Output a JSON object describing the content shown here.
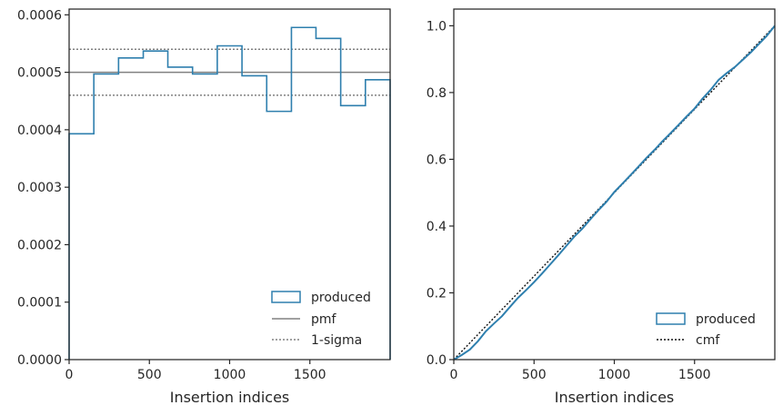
{
  "colors": {
    "produced": "#2e7fae",
    "pmf": "#808080",
    "sigma": "#808080",
    "cmf": "#111111",
    "axes": "#262626"
  },
  "chart_data": [
    {
      "type": "histogram-step",
      "xlabel": "Insertion indices",
      "ylabel": "",
      "xlim": [
        0,
        2000
      ],
      "ylim": [
        0,
        0.00061
      ],
      "xticks": [
        0,
        500,
        1000,
        1500
      ],
      "xtick_labels": [
        "0",
        "500",
        "1000",
        "1500"
      ],
      "yticks": [
        0,
        0.0001,
        0.0002,
        0.0003,
        0.0004,
        0.0005,
        0.0006
      ],
      "ytick_labels": [
        "0.0000",
        "0.0001",
        "0.0002",
        "0.0003",
        "0.0004",
        "0.0005",
        "0.0006"
      ],
      "bin_edges": [
        0,
        154,
        308,
        462,
        615,
        769,
        923,
        1077,
        1231,
        1385,
        1538,
        1692,
        1846,
        2000
      ],
      "produced": [
        0.000393,
        0.000497,
        0.000525,
        0.000537,
        0.000509,
        0.000497,
        0.000546,
        0.000494,
        0.000432,
        0.000578,
        0.000559,
        0.000442,
        0.000487
      ],
      "pmf": 0.0005,
      "sigma_upper": 0.00054,
      "sigma_lower": 0.00046,
      "legend": {
        "position": "lower right",
        "entries": [
          "produced",
          "pmf",
          "1-sigma"
        ]
      }
    },
    {
      "type": "line",
      "xlabel": "Insertion indices",
      "ylabel": "",
      "xlim": [
        0,
        2000
      ],
      "ylim": [
        0,
        1.05
      ],
      "xticks": [
        0,
        500,
        1000,
        1500
      ],
      "xtick_labels": [
        "0",
        "500",
        "1000",
        "1500"
      ],
      "yticks": [
        0,
        0.2,
        0.4,
        0.6,
        0.8,
        1.0
      ],
      "ytick_labels": [
        "0.0",
        "0.2",
        "0.4",
        "0.6",
        "0.8",
        "1.0"
      ],
      "produced": {
        "x": [
          0,
          50,
          100,
          150,
          200,
          250,
          300,
          350,
          400,
          450,
          500,
          550,
          600,
          650,
          700,
          750,
          800,
          850,
          900,
          950,
          1000,
          1050,
          1100,
          1150,
          1200,
          1250,
          1300,
          1350,
          1400,
          1450,
          1500,
          1550,
          1600,
          1650,
          1700,
          1750,
          1800,
          1850,
          1900,
          1950,
          2000
        ],
        "y": [
          0,
          0.014,
          0.03,
          0.055,
          0.085,
          0.108,
          0.13,
          0.158,
          0.185,
          0.208,
          0.232,
          0.258,
          0.285,
          0.312,
          0.34,
          0.368,
          0.392,
          0.42,
          0.447,
          0.472,
          0.502,
          0.527,
          0.552,
          0.578,
          0.604,
          0.628,
          0.654,
          0.678,
          0.703,
          0.728,
          0.752,
          0.782,
          0.808,
          0.838,
          0.858,
          0.876,
          0.898,
          0.92,
          0.945,
          0.97,
          1.0
        ]
      },
      "cmf": {
        "x": [
          0,
          2000
        ],
        "y": [
          0,
          1.0
        ]
      },
      "legend": {
        "position": "lower right",
        "entries": [
          "produced",
          "cmf"
        ]
      }
    }
  ]
}
